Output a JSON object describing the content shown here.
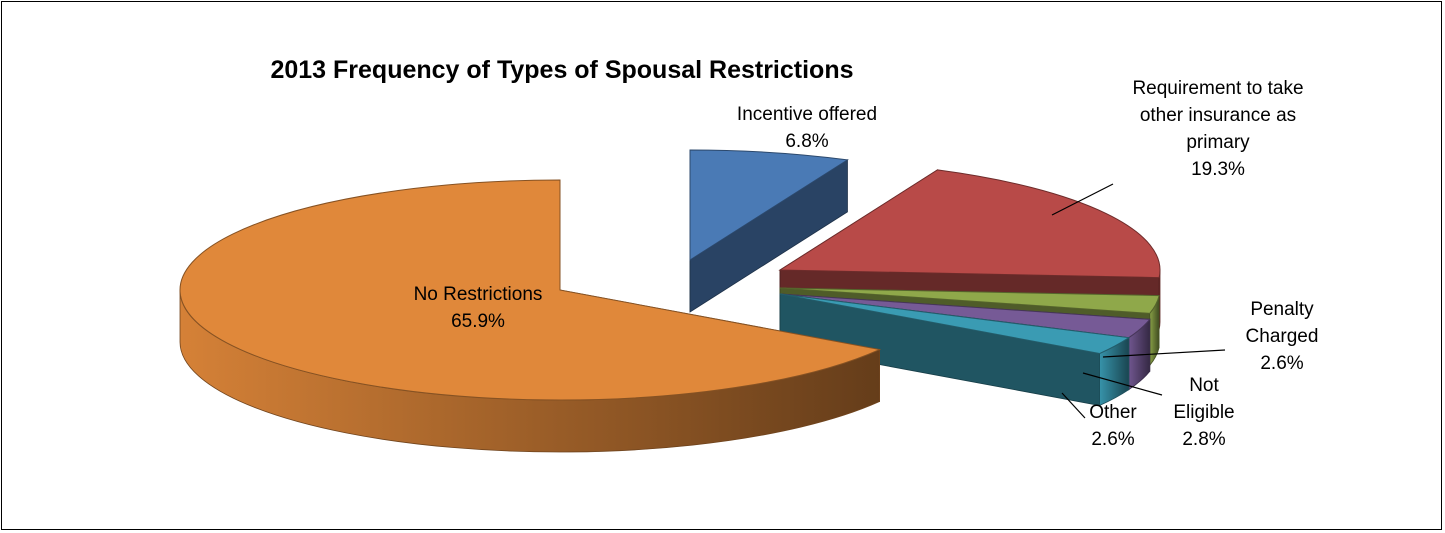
{
  "chart_data": {
    "type": "pie",
    "title": "2013 Frequency of Types of Spousal Restrictions",
    "slices": [
      {
        "name": "Incentive offered",
        "value": 6.8,
        "label_lines": [
          "Incentive offered"
        ],
        "value_label": "6.8%",
        "color": "#4a7ab5"
      },
      {
        "name": "Requirement to take other insurance as primary",
        "value": 19.3,
        "label_lines": [
          "Requirement to take",
          "other insurance as",
          "primary"
        ],
        "value_label": "19.3%",
        "color": "#b84a48"
      },
      {
        "name": "Penalty Charged",
        "value": 2.6,
        "label_lines": [
          "Penalty",
          "Charged"
        ],
        "value_label": "2.6%",
        "color": "#8fa84a"
      },
      {
        "name": "Not Eligible",
        "value": 2.8,
        "label_lines": [
          "Not",
          "Eligible"
        ],
        "value_label": "2.8%",
        "color": "#765a96"
      },
      {
        "name": "Other",
        "value": 2.6,
        "label_lines": [
          "Other"
        ],
        "value_label": "2.6%",
        "color": "#3a9bb3"
      },
      {
        "name": "No Restrictions",
        "value": 65.9,
        "label_lines": [
          "No Restrictions"
        ],
        "value_label": "65.9%",
        "color": "#e0883a"
      }
    ],
    "legend": "none",
    "style": "3d-exploded"
  }
}
